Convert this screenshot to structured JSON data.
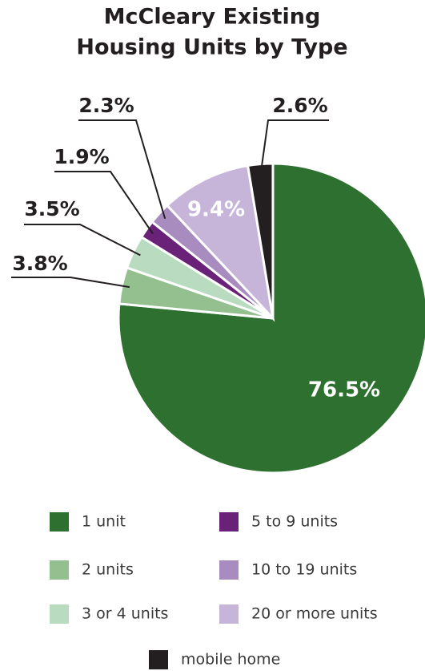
{
  "chart_data": {
    "type": "pie",
    "title": [
      "McCleary Existing",
      "Housing Units by Type"
    ],
    "categories": [
      "1 unit",
      "2 units",
      "3 or 4 units",
      "5 to 9 units",
      "10 to 19 units",
      "20 or more units",
      "mobile home"
    ],
    "values": [
      76.5,
      3.8,
      3.5,
      1.9,
      2.3,
      9.4,
      2.6
    ],
    "value_labels": [
      "76.5%",
      "3.8%",
      "3.5%",
      "1.9%",
      "2.3%",
      "9.4%",
      "2.6%"
    ],
    "colors": [
      "#2e7030",
      "#93c08e",
      "#b9dcc0",
      "#6a2178",
      "#a88cbf",
      "#c7b5d9",
      "#231f20"
    ]
  }
}
